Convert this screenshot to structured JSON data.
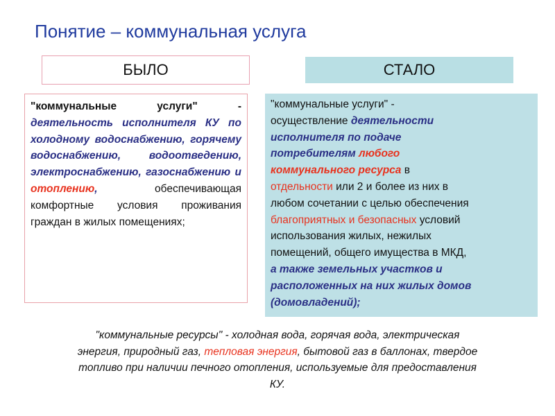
{
  "title": "Понятие – коммунальная услуга",
  "headers": {
    "old": "БЫЛО",
    "new": "СТАЛО"
  },
  "old_definition": [
    "\"коммунальные услуги\" -",
    " деятельность исполнителя КУ по холодному водоснабжению, горячему водоснабжению, водоотведению, электроснабжению, газоснабжению и ",
    "отоплению",
    ",",
    " обеспечивающая комфортные условия проживания граждан в жилых помещениях;"
  ],
  "new_definition": [
    "\"коммунальные услуги\" -\nосуществление ",
    "деятельности\nисполнителя по подаче\nпотребителям ",
    "любого\nкоммунального ресурса",
    " в\n",
    "отдельности",
    " или 2 и более из них в\nлюбом сочетании с целью обеспечения\n",
    "благоприятных и безопасных",
    " условий\nиспользования жилых, нежилых\nпомещений, общего имущества в МКД,\n",
    "а также земельных участков и\nрасположенных на них жилых домов\n(домовладений);"
  ],
  "resources_note": [
    "\"коммунальные ресурсы\" - холодная вода, горячая вода, электрическая\nэнергия, природный газ, ",
    "тепловая энергия",
    ", бытовой газ в баллонах, твердое\nтопливо при наличии печного отопления, используемые для предоставления\nКУ."
  ],
  "colors": {
    "title": "#1f3a9e",
    "emphasis_blue": "#2a2f85",
    "emphasis_red": "#e8321e",
    "new_fill": "#bee0e6",
    "old_border": "#e8a0a8"
  }
}
